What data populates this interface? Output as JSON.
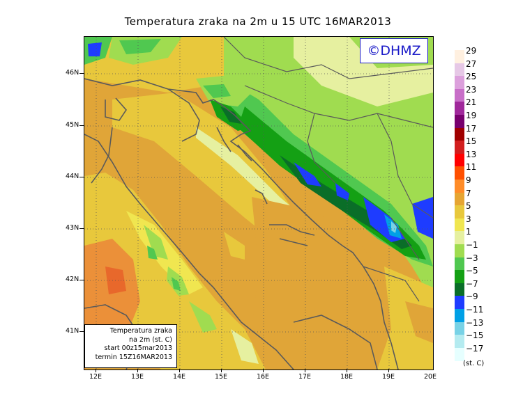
{
  "title": "Temperatura zraka na 2m u 15 UTC 16MAR2013",
  "watermark": "©DHMZ",
  "info_box": {
    "line1": "Temperatura zraka",
    "line2": "na 2m (st. C)",
    "line3": "start 00z15mar2013",
    "line4": "termin 15Z16MAR2013"
  },
  "lat_labels": [
    "46N",
    "45N",
    "44N",
    "43N",
    "42N",
    "41N"
  ],
  "lon_labels": [
    "12E",
    "13E",
    "14E",
    "15E",
    "16E",
    "17E",
    "18E",
    "19E",
    "20E"
  ],
  "legend": {
    "unit": "(st. C)",
    "labels": [
      "29",
      "27",
      "25",
      "23",
      "21",
      "19",
      "17",
      "15",
      "13",
      "11",
      "9",
      "7",
      "5",
      "3",
      "1",
      "−1",
      "−3",
      "−5",
      "−7",
      "−9",
      "−11",
      "−13",
      "−15",
      "−17"
    ],
    "colors": [
      "#fff0e0",
      "#e6c8e6",
      "#dca0dc",
      "#c86ec8",
      "#a0289b",
      "#78006e",
      "#a00000",
      "#d21e1e",
      "#ff0000",
      "#ff5000",
      "#ff8c28",
      "#e6a532",
      "#e8c83c",
      "#f0e650",
      "#e6f0a0",
      "#a0dc50",
      "#50c850",
      "#14a014",
      "#0a6e28",
      "#1e3cff",
      "#00a0e6",
      "#78d2e6",
      "#b4ebf0",
      "#e6ffff"
    ]
  },
  "colors": {
    "sea": "#e0a538",
    "coast": "#5a5a5a",
    "border_frame": "#000000",
    "watermark": "#1a1ac8"
  }
}
